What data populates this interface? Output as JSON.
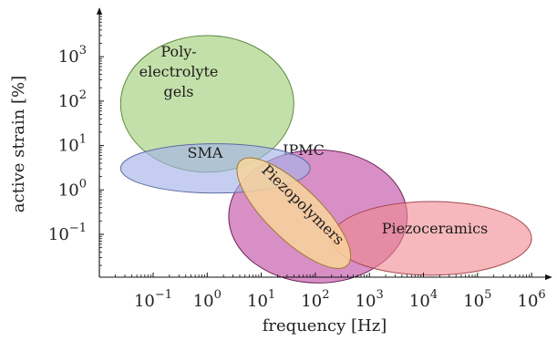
{
  "chart_data": {
    "type": "scatter",
    "xlabel": "frequency [Hz]",
    "ylabel": "active strain [%]",
    "x_scale": "log",
    "y_scale": "log",
    "xlim": [
      0.01,
      1000000
    ],
    "ylim": [
      0.01,
      10000
    ],
    "x_ticks": [
      {
        "value": 0.1,
        "base": "10",
        "exp": "−1"
      },
      {
        "value": 1,
        "base": "10",
        "exp": "0"
      },
      {
        "value": 10,
        "base": "10",
        "exp": "1"
      },
      {
        "value": 100,
        "base": "10",
        "exp": "2"
      },
      {
        "value": 1000,
        "base": "10",
        "exp": "3"
      },
      {
        "value": 10000,
        "base": "10",
        "exp": "4"
      },
      {
        "value": 100000,
        "base": "10",
        "exp": "5"
      },
      {
        "value": 1000000,
        "base": "10",
        "exp": "6"
      }
    ],
    "y_ticks": [
      {
        "value": 0.1,
        "base": "10",
        "exp": "−1"
      },
      {
        "value": 1,
        "base": "10",
        "exp": "0"
      },
      {
        "value": 10,
        "base": "10",
        "exp": "1"
      },
      {
        "value": 100,
        "base": "10",
        "exp": "2"
      },
      {
        "value": 1000,
        "base": "10",
        "exp": "3"
      }
    ],
    "regions": [
      {
        "key": "polyelectrolyte",
        "lines": [
          "Poly-",
          "electrolyte",
          "gels"
        ],
        "x_range": [
          0.025,
          40
        ],
        "y_range": [
          2.5,
          3000
        ],
        "fill": "#9ccc72",
        "stroke": "#5f8a3e",
        "fill_opacity": 0.6
      },
      {
        "key": "ipmc",
        "lines": [
          "IPMC"
        ],
        "x_range": [
          2.5,
          5000
        ],
        "y_range": [
          0.008,
          8
        ],
        "fill": "#bb3e9c",
        "stroke": "#6c2358",
        "fill_opacity": 0.58
      },
      {
        "key": "sma",
        "lines": [
          "SMA"
        ],
        "x_range": [
          0.025,
          80
        ],
        "y_range": [
          0.85,
          11
        ],
        "fill": "#a6b4e8",
        "stroke": "#5a6aa2",
        "fill_opacity": 0.65
      },
      {
        "key": "piezoceramics",
        "lines": [
          "Piezoceramics"
        ],
        "x_range": [
          200,
          1000000
        ],
        "y_range": [
          0.012,
          0.55
        ],
        "fill": "#f08890",
        "stroke": "#a64a54",
        "fill_opacity": 0.6
      },
      {
        "key": "piezopolymers",
        "lines": [
          "Piezopolymers"
        ],
        "center": [
          40,
          0.3
        ],
        "rotation_deg": 44,
        "fill": "#fad79a",
        "stroke": "#a07a32",
        "fill_opacity": 0.82
      }
    ]
  }
}
